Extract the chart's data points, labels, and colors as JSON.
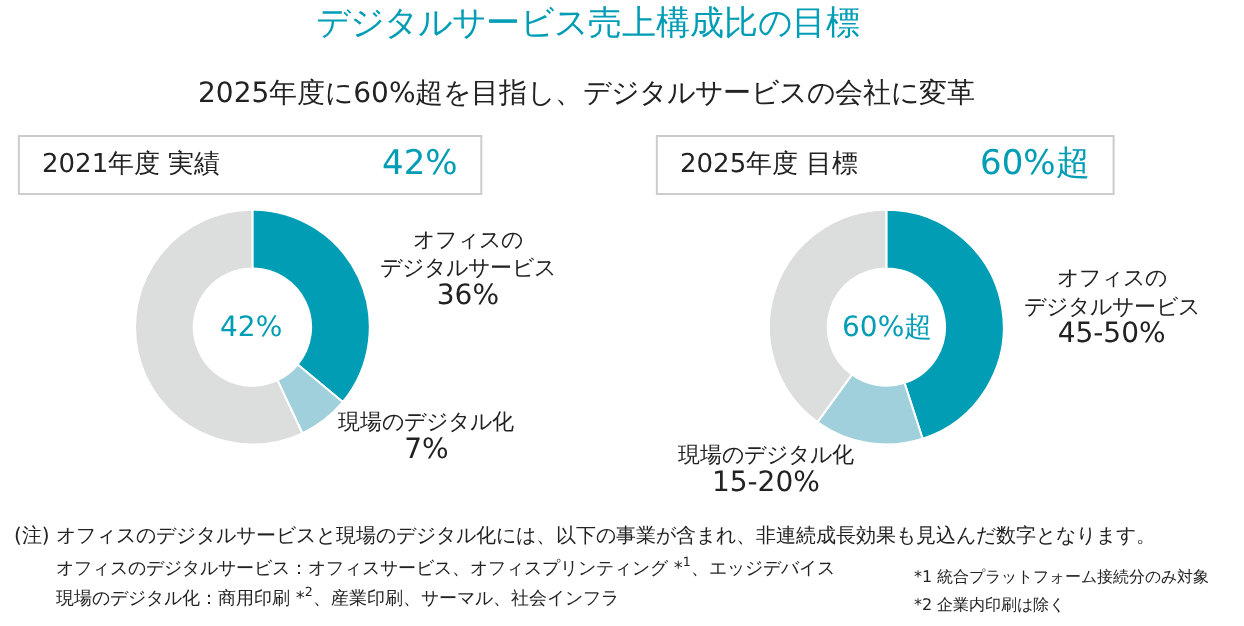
{
  "chart_data": [
    {
      "type": "donut",
      "title": "デジタルサービス売上構成比の目標",
      "subtitle": "2025年度に60%超を目指し、デジタルサービスの会社に変革",
      "categories": [
        "オフィスのデジタルサービス",
        "現場のデジタル化",
        null
      ],
      "values": [
        36,
        7,
        57
      ],
      "value_labels": [
        "36%",
        "7%",
        null
      ],
      "colors": [
        "#009db5",
        "#a0d0dc",
        "#dcdddd"
      ],
      "annotations": [
        "2021年度 実績",
        "42%",
        "42%",
        "(注) オフィスのデジタルサービスと現場のデジタル化には、以下の事業が含まれ、非連続成長効果も見込んだ数字となります。",
        "オフィスのデジタルサービス：オフィスサービス、オフィスプリンティング *$^{1}$、エッジデバイス",
        "現場のデジタル化：商用印刷 *$^{2}$、産業印刷、サーマル、社会インフラ",
        "*1 統合プラットフォーム接続分のみ対象",
        "*2 企業内印刷は除く"
      ]
    },
    {
      "type": "donut",
      "categories": [
        "オフィスのデジタルサービス",
        "現場のデジタル化",
        null
      ],
      "values": [
        45,
        15,
        40
      ],
      "value_labels": [
        "45-50%",
        "15-20%",
        null
      ],
      "colors": [
        "#009db5",
        "#a0d0dc",
        "#dcdddd"
      ],
      "annotations": [
        "2025年度 目標",
        "60%超",
        "60%超"
      ]
    }
  ]
}
